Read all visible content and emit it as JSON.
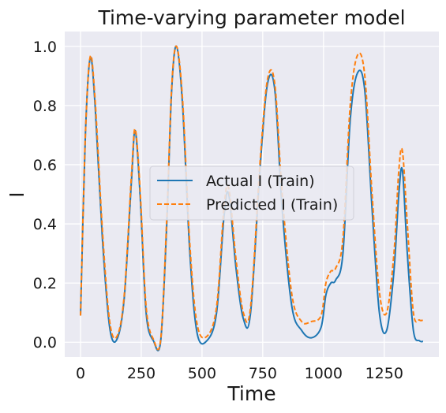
{
  "chart_data": {
    "type": "line",
    "title": "Time-varying parameter model",
    "xlabel": "Time",
    "ylabel": "I",
    "xlim": [
      -65,
      1475
    ],
    "ylim": [
      -0.05,
      1.05
    ],
    "xticks": [
      0,
      250,
      500,
      750,
      1000,
      1250
    ],
    "yticks": [
      0.0,
      0.2,
      0.4,
      0.6,
      0.8,
      1.0
    ],
    "xtick_labels": [
      "0",
      "250",
      "500",
      "750",
      "1000",
      "1250"
    ],
    "ytick_labels": [
      "0.0",
      "0.2",
      "0.4",
      "0.6",
      "0.8",
      "1.0"
    ],
    "grid": true,
    "legend_position": "center",
    "colors": {
      "background": "#eaeaf2",
      "grid": "#ffffff",
      "actual": "#1f77b4",
      "predicted": "#ff7f0e"
    },
    "series": [
      {
        "name": "Actual I (Train)",
        "style": "solid",
        "x": [
          0,
          20,
          40,
          60,
          90,
          120,
          150,
          180,
          210,
          225,
          245,
          270,
          300,
          330,
          355,
          375,
          395,
          420,
          450,
          480,
          520,
          560,
          590,
          610,
          640,
          670,
          700,
          740,
          770,
          800,
          830,
          870,
          910,
          950,
          990,
          1010,
          1030,
          1050,
          1080,
          1110,
          1140,
          1170,
          1200,
          1230,
          1260,
          1290,
          1310,
          1325,
          1345,
          1370,
          1395,
          1410
        ],
        "y": [
          0.09,
          0.7,
          0.96,
          0.8,
          0.35,
          0.05,
          0.01,
          0.15,
          0.55,
          0.715,
          0.5,
          0.1,
          0.005,
          0.005,
          0.4,
          0.85,
          1.0,
          0.8,
          0.3,
          0.03,
          0.005,
          0.1,
          0.42,
          0.5,
          0.25,
          0.08,
          0.1,
          0.6,
          0.875,
          0.85,
          0.45,
          0.12,
          0.04,
          0.015,
          0.05,
          0.16,
          0.2,
          0.21,
          0.3,
          0.75,
          0.91,
          0.85,
          0.45,
          0.1,
          0.04,
          0.24,
          0.5,
          0.58,
          0.3,
          0.04,
          0.005,
          0.003
        ]
      },
      {
        "name": "Predicted I (Train)",
        "style": "dashed",
        "x": [
          0,
          20,
          40,
          60,
          90,
          120,
          150,
          180,
          210,
          225,
          245,
          270,
          300,
          330,
          355,
          375,
          395,
          420,
          450,
          480,
          520,
          560,
          590,
          610,
          640,
          670,
          700,
          740,
          770,
          800,
          830,
          870,
          910,
          950,
          990,
          1010,
          1030,
          1050,
          1080,
          1110,
          1140,
          1170,
          1200,
          1230,
          1260,
          1290,
          1310,
          1325,
          1345,
          1370,
          1395,
          1410
        ],
        "y": [
          0.09,
          0.7,
          0.965,
          0.82,
          0.38,
          0.07,
          0.02,
          0.16,
          0.57,
          0.72,
          0.52,
          0.12,
          0.01,
          0.01,
          0.42,
          0.86,
          1.0,
          0.82,
          0.33,
          0.06,
          0.02,
          0.12,
          0.45,
          0.52,
          0.28,
          0.1,
          0.12,
          0.62,
          0.89,
          0.87,
          0.5,
          0.16,
          0.07,
          0.07,
          0.09,
          0.2,
          0.24,
          0.25,
          0.35,
          0.8,
          0.97,
          0.9,
          0.5,
          0.17,
          0.1,
          0.3,
          0.58,
          0.645,
          0.4,
          0.1,
          0.075,
          0.075
        ]
      }
    ]
  }
}
